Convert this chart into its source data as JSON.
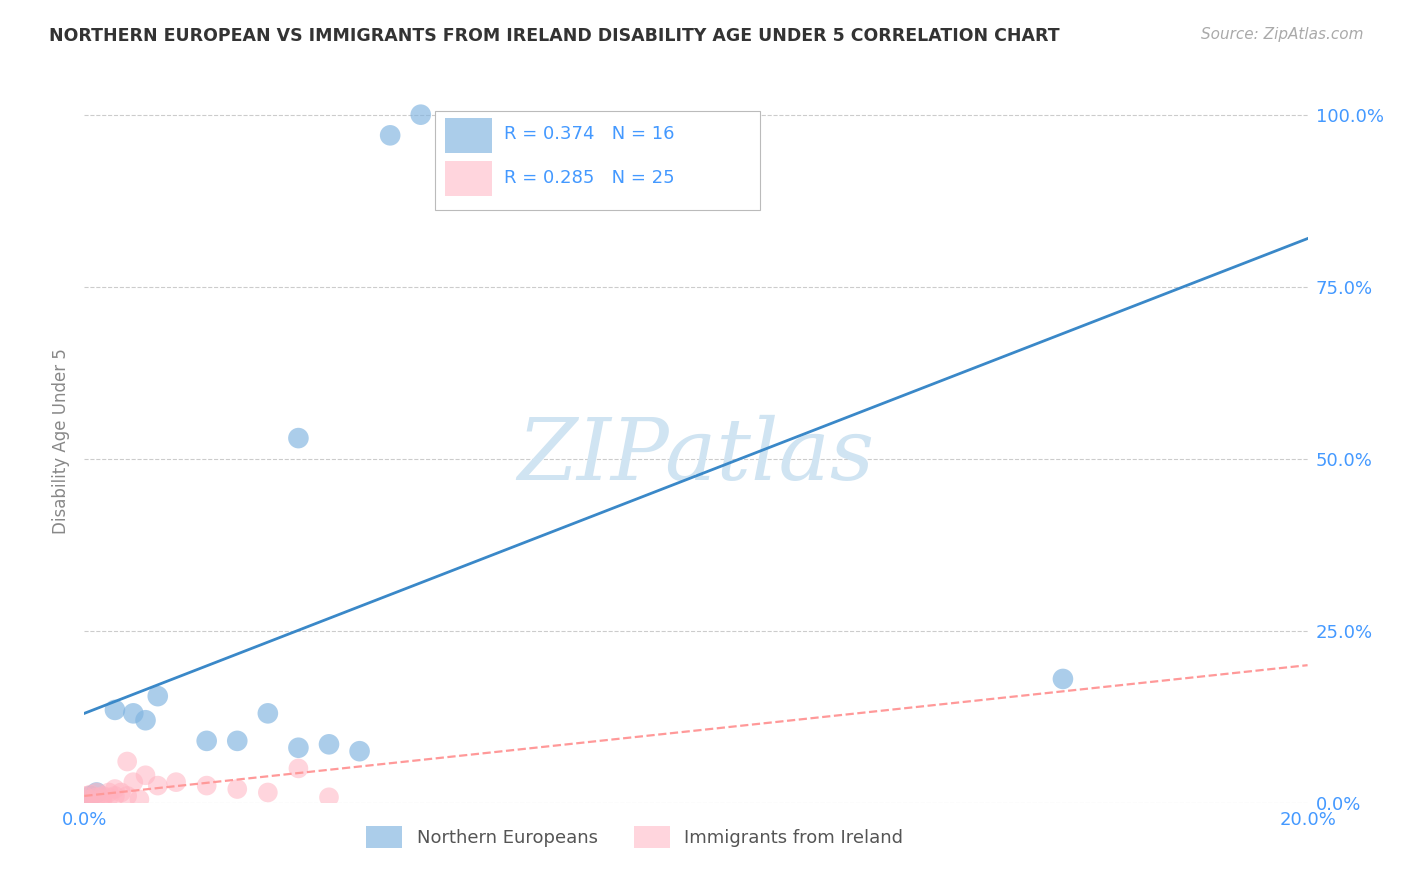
{
  "title": "NORTHERN EUROPEAN VS IMMIGRANTS FROM IRELAND DISABILITY AGE UNDER 5 CORRELATION CHART",
  "source": "Source: ZipAtlas.com",
  "ylabel": "Disability Age Under 5",
  "xlim": [
    0.0,
    0.2
  ],
  "ylim": [
    0.0,
    1.05
  ],
  "ytick_vals": [
    0.0,
    0.25,
    0.5,
    0.75,
    1.0
  ],
  "ytick_labels": [
    "0.0%",
    "25.0%",
    "50.0%",
    "75.0%",
    "100.0%"
  ],
  "xtick_vals": [
    0.0,
    0.02,
    0.04,
    0.06,
    0.08,
    0.1,
    0.12,
    0.14,
    0.16,
    0.18,
    0.2
  ],
  "blue_R": 0.374,
  "blue_N": 16,
  "pink_R": 0.285,
  "pink_N": 25,
  "blue_scatter_x": [
    0.001,
    0.002,
    0.005,
    0.008,
    0.01,
    0.012,
    0.02,
    0.025,
    0.03,
    0.035,
    0.04,
    0.045,
    0.035,
    0.05,
    0.16,
    0.055
  ],
  "blue_scatter_y": [
    0.01,
    0.015,
    0.135,
    0.13,
    0.12,
    0.155,
    0.09,
    0.09,
    0.13,
    0.08,
    0.085,
    0.075,
    0.53,
    0.97,
    0.18,
    1.0
  ],
  "pink_scatter_x": [
    0.0,
    0.0,
    0.001,
    0.001,
    0.002,
    0.002,
    0.003,
    0.003,
    0.004,
    0.004,
    0.005,
    0.005,
    0.006,
    0.007,
    0.007,
    0.008,
    0.009,
    0.01,
    0.012,
    0.015,
    0.02,
    0.025,
    0.03,
    0.035,
    0.04
  ],
  "pink_scatter_y": [
    0.005,
    0.01,
    0.005,
    0.012,
    0.008,
    0.015,
    0.005,
    0.01,
    0.008,
    0.015,
    0.01,
    0.02,
    0.015,
    0.06,
    0.01,
    0.03,
    0.005,
    0.04,
    0.025,
    0.03,
    0.025,
    0.02,
    0.015,
    0.05,
    0.008
  ],
  "blue_line_x": [
    0.0,
    0.2
  ],
  "blue_line_y": [
    0.13,
    0.82
  ],
  "pink_line_x": [
    0.0,
    0.2
  ],
  "pink_line_y": [
    0.01,
    0.2
  ],
  "blue_color": "#7FB3E0",
  "pink_color": "#FFB3C1",
  "blue_line_color": "#3A88C8",
  "pink_line_color": "#FF9999",
  "watermark_color": "#D0E4F2",
  "background_color": "#FFFFFF",
  "grid_color": "#CCCCCC",
  "tick_color": "#4499FF",
  "title_color": "#333333",
  "source_color": "#AAAAAA",
  "ylabel_color": "#888888"
}
